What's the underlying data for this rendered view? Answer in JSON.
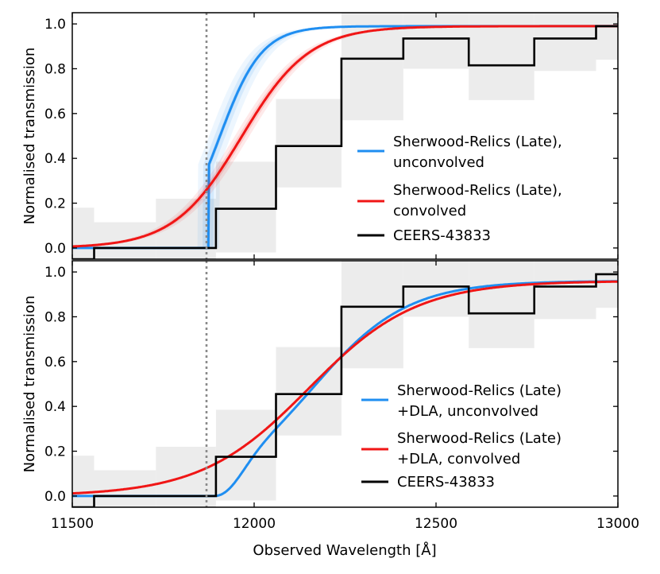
{
  "chart_data": {
    "type": "line",
    "xlabel": "Observed Wavelength [Å]",
    "xlim": [
      11500,
      13000
    ],
    "xticks": [
      11500,
      12000,
      12500,
      13000
    ],
    "vline_x": 11870,
    "panels": [
      {
        "id": "top",
        "ylabel": "Normalised transmission",
        "ylim": [
          -0.05,
          1.05
        ],
        "yticks": [
          "0.0",
          "0.2",
          "0.4",
          "0.6",
          "0.8",
          "1.0"
        ],
        "series": [
          {
            "name": "Sherwood-Relics (Late), unconvolved",
            "label_lines": [
              "Sherwood-Relics (Late),",
              "unconvolved"
            ],
            "color": "#1f8ef1",
            "model": "blue_top"
          },
          {
            "name": "Sherwood-Relics (Late), convolved",
            "label_lines": [
              "Sherwood-Relics (Late),",
              "convolved"
            ],
            "color": "#f01616",
            "model": "red_top"
          },
          {
            "name": "CEERS-43833",
            "label_lines": [
              "CEERS-43833"
            ],
            "color": "#000000",
            "model": "step"
          }
        ]
      },
      {
        "id": "bottom",
        "ylabel": "Normalised transmission",
        "ylim": [
          -0.05,
          1.05
        ],
        "yticks": [
          "0.0",
          "0.2",
          "0.4",
          "0.6",
          "0.8",
          "1.0"
        ],
        "series": [
          {
            "name": "Sherwood-Relics (Late) +DLA, unconvolved",
            "label_lines": [
              "Sherwood-Relics (Late)",
              "+DLA, unconvolved"
            ],
            "color": "#1f8ef1",
            "model": "blue_bottom"
          },
          {
            "name": "Sherwood-Relics (Late) +DLA, convolved",
            "label_lines": [
              "Sherwood-Relics (Late)",
              "+DLA, convolved"
            ],
            "color": "#f01616",
            "model": "red_bottom"
          },
          {
            "name": "CEERS-43833",
            "label_lines": [
              "CEERS-43833"
            ],
            "color": "#000000",
            "model": "step"
          }
        ]
      }
    ],
    "observed": {
      "bin_edges": [
        11500,
        11560,
        11730,
        11895,
        12060,
        12240,
        12410,
        12590,
        12770,
        12940,
        13000
      ],
      "values": [
        -0.05,
        0.0,
        0.0,
        0.175,
        0.455,
        0.845,
        0.935,
        0.815,
        0.935,
        0.99
      ],
      "err_low": [
        -0.05,
        -0.05,
        -0.05,
        -0.02,
        0.27,
        0.57,
        0.8,
        0.66,
        0.79,
        0.84
      ],
      "err_high": [
        0.18,
        0.115,
        0.22,
        0.385,
        0.665,
        1.05,
        1.05,
        1.05,
        1.05,
        1.05
      ]
    }
  }
}
